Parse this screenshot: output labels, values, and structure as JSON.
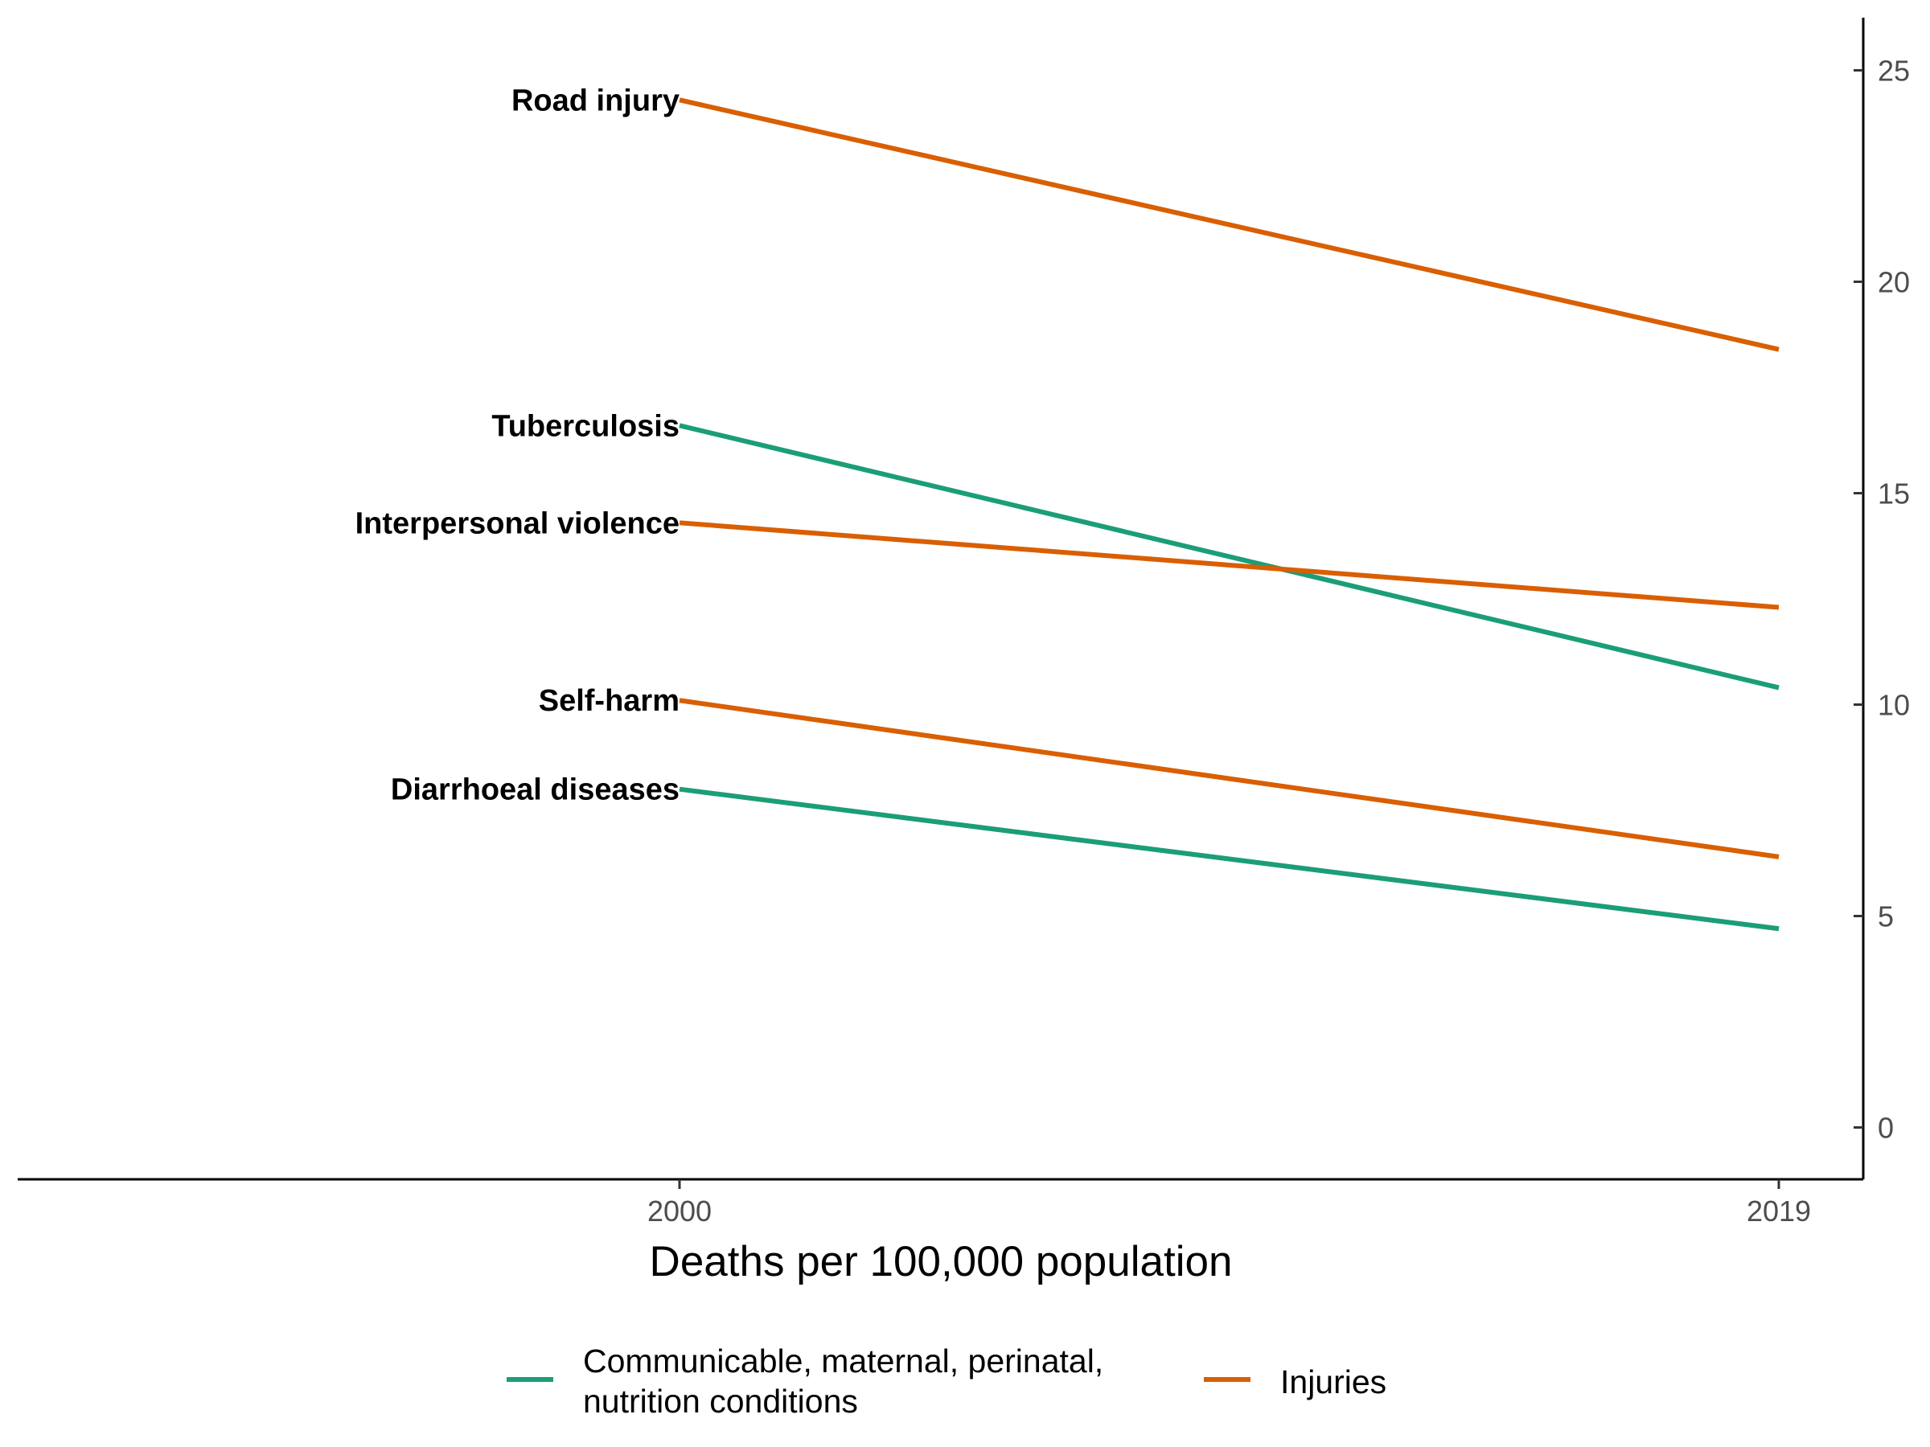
{
  "chart_data": {
    "type": "line",
    "xlabel": "Deaths per 100,000 population",
    "x": [
      "2000",
      "2019"
    ],
    "ylim": [
      0,
      25
    ],
    "yticks": [
      0,
      5,
      10,
      15,
      20,
      25
    ],
    "y_axis_position": "right",
    "grid": false,
    "legend_position": "bottom",
    "groups": [
      {
        "name": "Communicable, maternal, perinatal,\nnutrition conditions",
        "color": "#1b9e77"
      },
      {
        "name": "Injuries",
        "color": "#d95f02"
      }
    ],
    "series": [
      {
        "label": "Road injury",
        "group": "Injuries",
        "values": [
          24.3,
          18.4
        ]
      },
      {
        "label": "Tuberculosis",
        "group": "Communicable, maternal, perinatal,\nnutrition conditions",
        "values": [
          16.6,
          10.4
        ]
      },
      {
        "label": "Interpersonal violence",
        "group": "Injuries",
        "values": [
          14.3,
          12.3
        ]
      },
      {
        "label": "Self-harm",
        "group": "Injuries",
        "values": [
          10.1,
          6.4
        ]
      },
      {
        "label": "Diarrhoeal diseases",
        "group": "Communicable, maternal, perinatal,\nnutrition conditions",
        "values": [
          8.0,
          4.7
        ]
      }
    ]
  }
}
